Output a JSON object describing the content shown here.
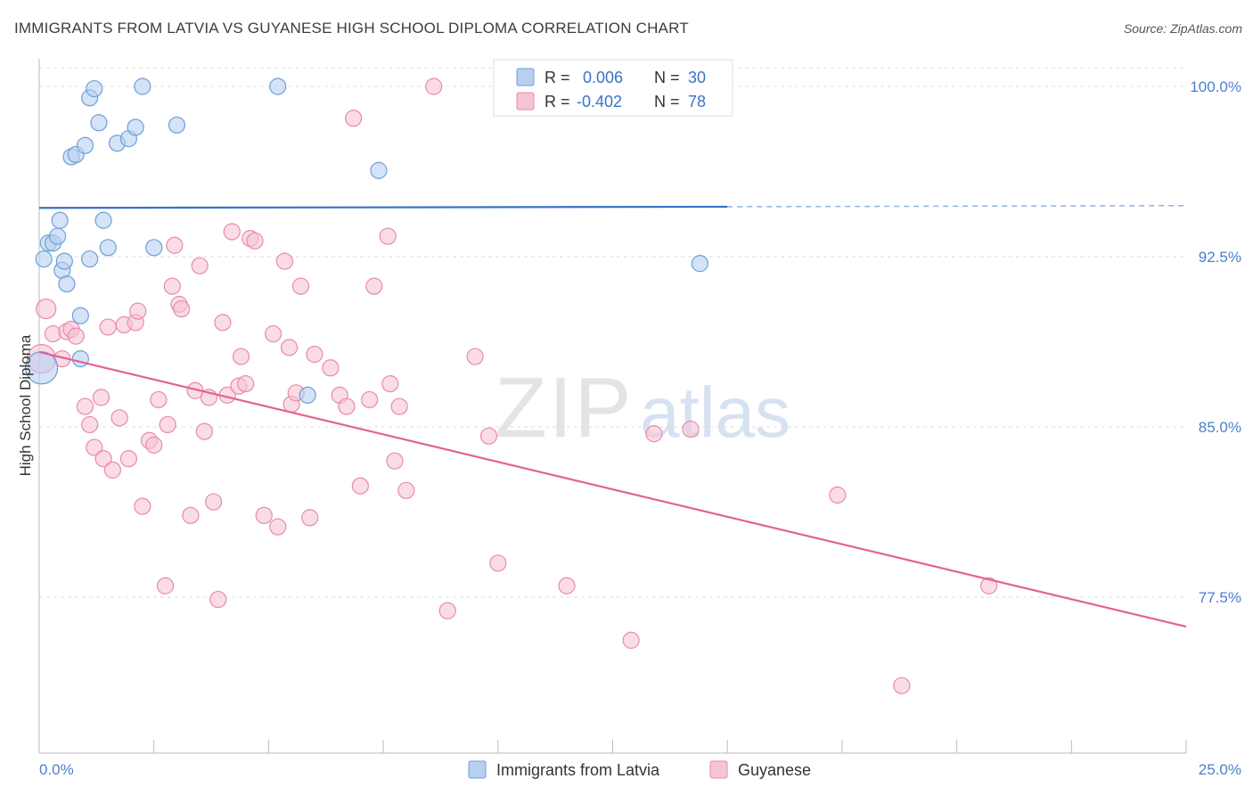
{
  "title": "IMMIGRANTS FROM LATVIA VS GUYANESE HIGH SCHOOL DIPLOMA CORRELATION CHART",
  "source": "Source: ZipAtlas.com",
  "watermark": {
    "zip": "ZIP",
    "atlas": "atlas"
  },
  "legend_top": [
    {
      "r_label": "R =",
      "r_value": "0.006",
      "n_label": "N =",
      "n_value": "30"
    },
    {
      "r_label": "R =",
      "r_value": "-0.402",
      "n_label": "N =",
      "n_value": "78"
    }
  ],
  "legend_bottom": [
    "Immigrants from Latvia",
    "Guyanese"
  ],
  "colors": {
    "latvia_fill": "#b7d0f0",
    "latvia_stroke": "#6e9fd8",
    "latvia_line": "#3a72c8",
    "guyanese_fill": "#f7c4d5",
    "guyanese_stroke": "#e88aa9",
    "guyanese_line": "#e26391",
    "axis_text": "#4a7fd0",
    "grid": "#dedede"
  },
  "chart_data": {
    "type": "scatter",
    "title": "IMMIGRANTS FROM LATVIA VS GUYANESE HIGH SCHOOL DIPLOMA CORRELATION CHART",
    "xlabel": "",
    "ylabel": "High School Diploma",
    "xlim": [
      0,
      25
    ],
    "ylim": [
      71.0,
      101.0
    ],
    "x_tick_labels": [
      "0.0%",
      "25.0%"
    ],
    "y_ticks": [
      77.5,
      85.0,
      92.5,
      100.0
    ],
    "y_tick_labels": [
      "77.5%",
      "85.0%",
      "92.5%",
      "100.0%"
    ],
    "grid": true,
    "legend_position": "top-center",
    "series": [
      {
        "name": "Immigrants from Latvia",
        "r": 0.006,
        "n": 30,
        "trend": {
          "x": [
            0,
            15.0
          ],
          "y": [
            94.65,
            94.7
          ],
          "dashed_extension_to": 25.0,
          "dashed_end_y": 94.75
        },
        "points": [
          [
            0.05,
            87.6,
            18
          ],
          [
            0.1,
            92.4,
            9
          ],
          [
            0.2,
            93.1,
            9
          ],
          [
            0.3,
            93.1,
            9
          ],
          [
            0.4,
            93.4,
            9
          ],
          [
            0.45,
            94.1,
            9
          ],
          [
            0.5,
            91.9,
            9
          ],
          [
            0.55,
            92.3,
            9
          ],
          [
            0.6,
            91.3,
            9
          ],
          [
            0.7,
            96.9,
            9
          ],
          [
            0.8,
            97.0,
            9
          ],
          [
            0.9,
            88.0,
            9
          ],
          [
            0.9,
            89.9,
            9
          ],
          [
            1.0,
            97.4,
            9
          ],
          [
            1.1,
            92.4,
            9
          ],
          [
            1.1,
            99.5,
            9
          ],
          [
            1.2,
            99.9,
            9
          ],
          [
            1.3,
            98.4,
            9
          ],
          [
            1.4,
            94.1,
            9
          ],
          [
            1.5,
            92.9,
            9
          ],
          [
            1.7,
            97.5,
            9
          ],
          [
            1.95,
            97.7,
            9
          ],
          [
            2.1,
            98.2,
            9
          ],
          [
            2.25,
            100.0,
            9
          ],
          [
            2.5,
            92.9,
            9
          ],
          [
            3.0,
            98.3,
            9
          ],
          [
            5.2,
            100.0,
            9
          ],
          [
            5.85,
            86.4,
            9
          ],
          [
            7.4,
            96.3,
            9
          ],
          [
            14.4,
            92.2,
            9
          ]
        ]
      },
      {
        "name": "Guyanese",
        "r": -0.402,
        "n": 78,
        "trend": {
          "x": [
            0,
            25.0
          ],
          "y": [
            88.3,
            76.2
          ]
        },
        "points": [
          [
            0.05,
            88.0,
            16
          ],
          [
            0.15,
            90.2,
            11
          ],
          [
            0.3,
            89.1,
            9
          ],
          [
            0.5,
            88.0,
            9
          ],
          [
            0.6,
            89.2,
            9
          ],
          [
            0.7,
            89.3,
            9
          ],
          [
            0.8,
            89.0,
            9
          ],
          [
            1.0,
            85.9,
            9
          ],
          [
            1.1,
            85.1,
            9
          ],
          [
            1.2,
            84.1,
            9
          ],
          [
            1.35,
            86.3,
            9
          ],
          [
            1.4,
            83.6,
            9
          ],
          [
            1.5,
            89.4,
            9
          ],
          [
            1.6,
            83.1,
            9
          ],
          [
            1.75,
            85.4,
            9
          ],
          [
            1.85,
            89.5,
            9
          ],
          [
            1.95,
            83.6,
            9
          ],
          [
            2.1,
            89.6,
            9
          ],
          [
            2.15,
            90.1,
            9
          ],
          [
            2.25,
            81.5,
            9
          ],
          [
            2.4,
            84.4,
            9
          ],
          [
            2.5,
            84.2,
            9
          ],
          [
            2.6,
            86.2,
            9
          ],
          [
            2.75,
            78.0,
            9
          ],
          [
            2.8,
            85.1,
            9
          ],
          [
            2.9,
            91.2,
            9
          ],
          [
            2.95,
            93.0,
            9
          ],
          [
            3.05,
            90.4,
            9
          ],
          [
            3.1,
            90.2,
            9
          ],
          [
            3.3,
            81.1,
            9
          ],
          [
            3.4,
            86.6,
            9
          ],
          [
            3.5,
            92.1,
            9
          ],
          [
            3.6,
            84.8,
            9
          ],
          [
            3.8,
            81.7,
            9
          ],
          [
            3.9,
            77.4,
            9
          ],
          [
            4.0,
            89.6,
            9
          ],
          [
            4.1,
            86.4,
            9
          ],
          [
            4.2,
            93.6,
            9
          ],
          [
            4.35,
            86.8,
            9
          ],
          [
            4.4,
            88.1,
            9
          ],
          [
            4.5,
            86.9,
            9
          ],
          [
            4.6,
            93.3,
            9
          ],
          [
            4.7,
            93.2,
            9
          ],
          [
            4.9,
            81.1,
            9
          ],
          [
            5.1,
            89.1,
            9
          ],
          [
            5.2,
            80.6,
            9
          ],
          [
            5.35,
            92.3,
            9
          ],
          [
            5.45,
            88.5,
            9
          ],
          [
            5.5,
            86.0,
            9
          ],
          [
            5.6,
            86.5,
            9
          ],
          [
            5.7,
            91.2,
            9
          ],
          [
            5.9,
            81.0,
            9
          ],
          [
            6.0,
            88.2,
            9
          ],
          [
            6.35,
            87.6,
            9
          ],
          [
            6.55,
            86.4,
            9
          ],
          [
            6.7,
            85.9,
            9
          ],
          [
            6.85,
            98.6,
            9
          ],
          [
            7.0,
            82.4,
            9
          ],
          [
            7.2,
            86.2,
            9
          ],
          [
            7.3,
            91.2,
            9
          ],
          [
            7.6,
            93.4,
            9
          ],
          [
            7.65,
            86.9,
            9
          ],
          [
            7.75,
            83.5,
            9
          ],
          [
            7.85,
            85.9,
            9
          ],
          [
            8.0,
            82.2,
            9
          ],
          [
            8.6,
            100.0,
            9
          ],
          [
            8.9,
            76.9,
            9
          ],
          [
            9.5,
            88.1,
            9
          ],
          [
            9.8,
            84.6,
            9
          ],
          [
            10.0,
            79.0,
            9
          ],
          [
            11.5,
            78.0,
            9
          ],
          [
            12.9,
            75.6,
            9
          ],
          [
            13.4,
            84.7,
            9
          ],
          [
            14.2,
            84.9,
            9
          ],
          [
            17.4,
            82.0,
            9
          ],
          [
            18.8,
            73.6,
            9
          ],
          [
            20.7,
            78.0,
            9
          ],
          [
            3.7,
            86.3,
            9
          ]
        ]
      }
    ]
  }
}
